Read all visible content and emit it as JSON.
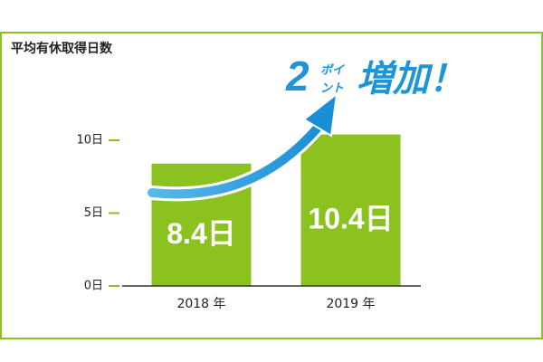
{
  "chart_data": {
    "type": "bar",
    "title": "平均有休取得日数",
    "categories": [
      "2018 年",
      "2019 年"
    ],
    "values": [
      8.4,
      10.4
    ],
    "value_labels": [
      "8.4日",
      "10.4日"
    ],
    "color": "#8cc21f",
    "ylim": [
      0,
      10
    ],
    "yticks": [
      {
        "value": 0,
        "label": "0日"
      },
      {
        "value": 5,
        "label": "5日"
      },
      {
        "value": 10,
        "label": "10日"
      }
    ],
    "annotation": [
      "2",
      "ポイ",
      "ント",
      "増加！"
    ]
  }
}
